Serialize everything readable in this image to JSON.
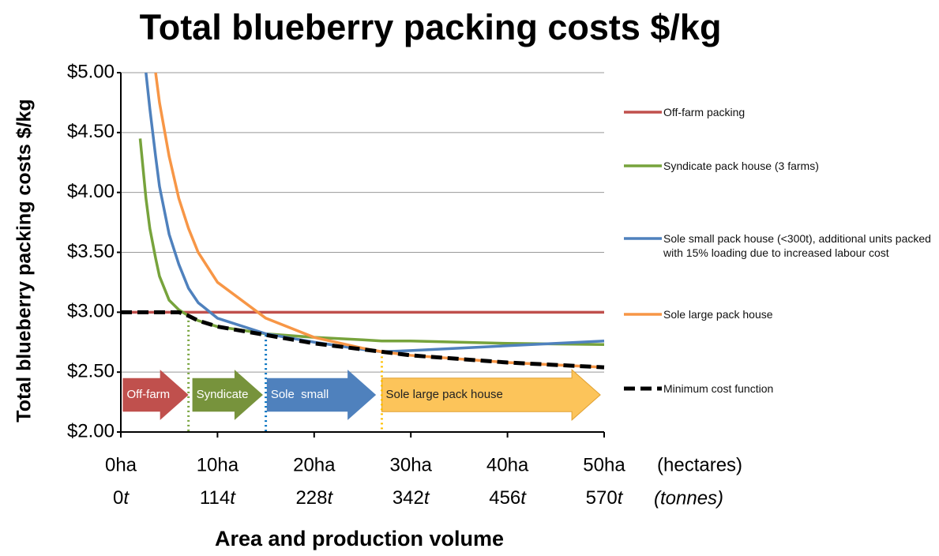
{
  "chart_data": {
    "type": "line",
    "title": "Total blueberry packing costs $/kg",
    "y_label": "Total blueberry packing costs $/kg",
    "x_label": "Area and production volume",
    "x_unit_label": "(hectares)",
    "x_unit2_label": "(tonnes)",
    "x": [
      0,
      2,
      2.6,
      3,
      3.6,
      4,
      5,
      6,
      7,
      8,
      10,
      15,
      20,
      25,
      27,
      30,
      40,
      50
    ],
    "series": [
      {
        "name": "Off-farm packing",
        "color": "#c0504d",
        "values": [
          3,
          3,
          3,
          3,
          3,
          3,
          3,
          3,
          3,
          3,
          3,
          3,
          3,
          3,
          3,
          3,
          3,
          3
        ]
      },
      {
        "name": "Syndicate pack house (3 farms)",
        "color": "#77a33c",
        "values": [
          null,
          4.45,
          3.95,
          3.7,
          3.45,
          3.3,
          3.1,
          3.02,
          2.97,
          2.93,
          2.88,
          2.82,
          2.79,
          2.77,
          2.76,
          2.76,
          2.74,
          2.73
        ]
      },
      {
        "name": "Sole small pack house (<300t), additional units packed with 15% loading due to increased labour cost",
        "color": "#4f81bd",
        "values": [
          null,
          null,
          5.0,
          4.7,
          4.3,
          4.05,
          3.65,
          3.4,
          3.2,
          3.08,
          2.95,
          2.82,
          2.75,
          2.69,
          2.67,
          2.68,
          2.72,
          2.76
        ]
      },
      {
        "name": "Sole large pack house",
        "color": "#f79646",
        "values": [
          null,
          null,
          null,
          null,
          5.0,
          4.75,
          4.3,
          3.95,
          3.7,
          3.5,
          3.25,
          2.95,
          2.79,
          2.7,
          2.67,
          2.64,
          2.58,
          2.54
        ]
      },
      {
        "name": "Minimum cost function",
        "color": "#000000",
        "dashed": true,
        "values": [
          3.0,
          3.0,
          3.0,
          3.0,
          3.0,
          3.0,
          3.0,
          3.0,
          2.97,
          2.93,
          2.88,
          2.81,
          2.74,
          2.69,
          2.67,
          2.64,
          2.58,
          2.54
        ]
      }
    ],
    "thresholds": [
      {
        "x": 7,
        "y": 2.97,
        "color": "#77a33c"
      },
      {
        "x": 15,
        "y": 2.81,
        "color": "#0070c0"
      },
      {
        "x": 27,
        "y": 2.67,
        "color": "#ffc000"
      }
    ],
    "regions": [
      {
        "label": "Off-farm",
        "from": 0.2,
        "to": 7,
        "color": "#c0504d",
        "text_color": "#ffffff"
      },
      {
        "label": "Syndicate",
        "from": 7.4,
        "to": 14.7,
        "color": "#77933c",
        "text_color": "#ffffff"
      },
      {
        "label": "Sole  small",
        "from": 15.1,
        "to": 26.4,
        "color": "#4f81bd",
        "text_color": "#ffffff"
      },
      {
        "label": "Sole large pack house",
        "from": 27,
        "to": 49.6,
        "color": "#fcc45a",
        "text_color": "#222222"
      }
    ],
    "xlim": [
      0,
      50
    ],
    "xticks": [
      {
        "value": 0,
        "label": "0ha"
      },
      {
        "value": 10,
        "label": "10ha"
      },
      {
        "value": 20,
        "label": "20ha"
      },
      {
        "value": 30,
        "label": "30ha"
      },
      {
        "value": 40,
        "label": "40ha"
      },
      {
        "value": 50,
        "label": "50ha"
      }
    ],
    "x_tonnes_labels": [
      "0t",
      "114t",
      "228t",
      "342t",
      "456t",
      "570t"
    ],
    "ylim": [
      2,
      5
    ],
    "yticks": [
      {
        "value": 2,
        "label": "$2.00"
      },
      {
        "value": 2.5,
        "label": "$2.50"
      },
      {
        "value": 3,
        "label": "$3.00"
      },
      {
        "value": 3.5,
        "label": "$3.50"
      },
      {
        "value": 4,
        "label": "$4.00"
      },
      {
        "value": 4.5,
        "label": "$4.50"
      },
      {
        "value": 5,
        "label": "$5.00"
      }
    ],
    "grid": true
  }
}
